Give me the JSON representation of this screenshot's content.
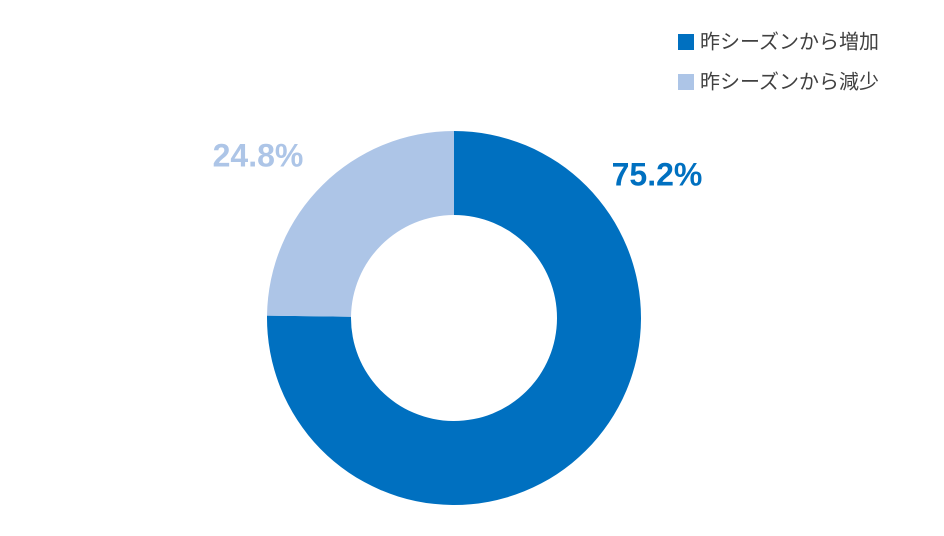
{
  "chart_data": {
    "type": "donut",
    "categories": [
      "昨シーズンから増加",
      "昨シーズンから減少"
    ],
    "values": [
      75.2,
      24.8
    ],
    "value_labels": [
      "75.2%",
      "24.8%"
    ],
    "colors": [
      "#0070c0",
      "#adc5e7"
    ],
    "legend": "top-right"
  }
}
